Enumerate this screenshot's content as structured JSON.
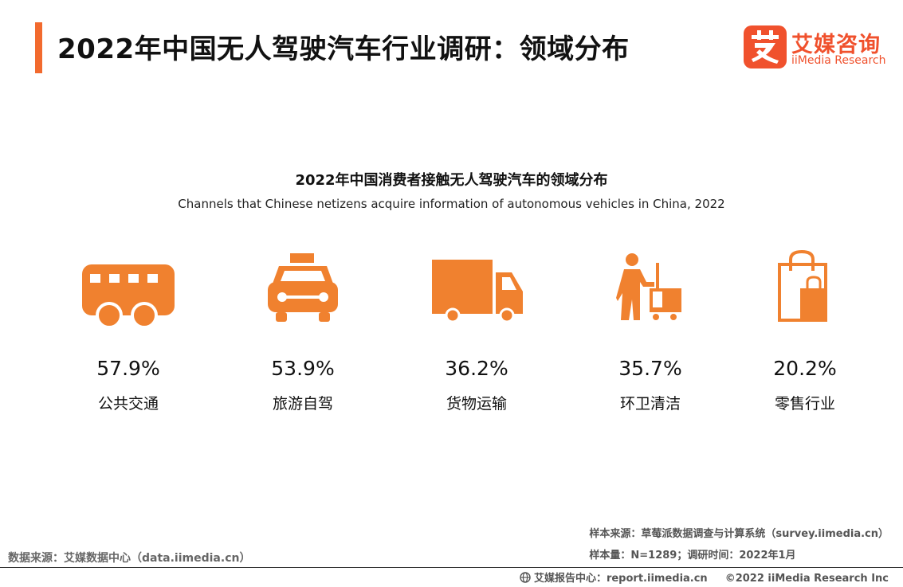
{
  "header": {
    "title": "2022年中国无人驾驶汽车行业调研：领域分布",
    "logo_cn": "艾媒咨询",
    "logo_en": "iiMedia Research",
    "accent_color": "#f26a2e"
  },
  "chart": {
    "title": "2022年中国消费者接触无人驾驶汽车的领域分布",
    "subtitle": "Channels that Chinese netizens acquire information of  autonomous vehicles in China, 2022"
  },
  "chart_data": {
    "type": "table",
    "categories": [
      "公共交通",
      "旅游自驾",
      "货物运输",
      "环卫清洁",
      "零售行业"
    ],
    "values": [
      57.9,
      53.9,
      36.2,
      35.7,
      20.2
    ],
    "title": "2022年中国消费者接触无人驾驶汽车的领域分布",
    "unit": "%"
  },
  "items": [
    {
      "icon": "bus-icon",
      "value": "57.9%",
      "label": "公共交通"
    },
    {
      "icon": "taxi-icon",
      "value": "53.9%",
      "label": "旅游自驾"
    },
    {
      "icon": "truck-icon",
      "value": "36.2%",
      "label": "货物运输"
    },
    {
      "icon": "cleaner-icon",
      "value": "35.7%",
      "label": "环卫清洁"
    },
    {
      "icon": "shopping-bag-icon",
      "value": "20.2%",
      "label": "零售行业"
    }
  ],
  "icon_color": "#f0812f",
  "sources": {
    "data_source": "数据来源：艾媒数据中心（data.iimedia.cn）",
    "sample_source": "样本来源：草莓派数据调查与计算系统（survey.iimedia.cn）",
    "sample_size": "样本量：N=1289；调研时间：2022年1月"
  },
  "footer": {
    "report_center": "艾媒报告中心：report.iimedia.cn",
    "copyright": "©2022  iiMedia Research  Inc"
  }
}
